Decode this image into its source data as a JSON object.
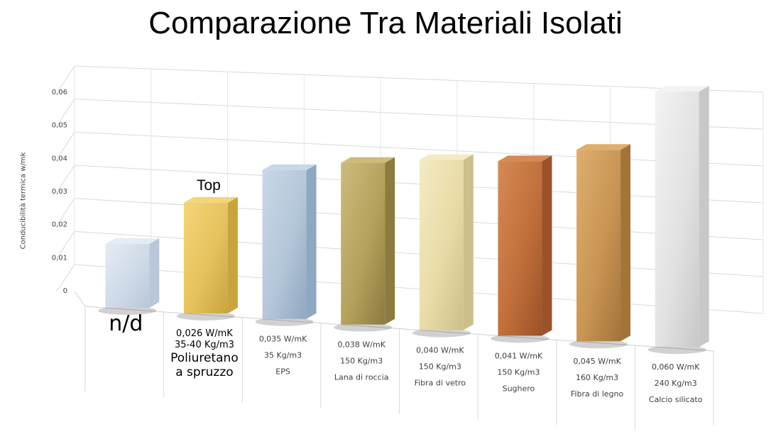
{
  "chart_data": {
    "type": "bar",
    "title": "Comparazione Tra Materiali Isolati",
    "ylabel": "Conducibilità termica w/mk",
    "ylim": [
      0,
      0.06
    ],
    "yticks": [
      "0",
      "0,01",
      "0,02",
      "0,03",
      "0,04",
      "0,05",
      "0,06"
    ],
    "grid": true,
    "annotation": "Top",
    "categories": [
      {
        "name": "",
        "lines": [
          "n/d"
        ],
        "value": 0.015,
        "texture": "ice-blue"
      },
      {
        "name": "Poliuretano a spruzzo",
        "lines": [
          "0,026 W/mK",
          "35-40 Kg/m3",
          "Poliuretano",
          "a spruzzo"
        ],
        "value": 0.026,
        "texture": "gold"
      },
      {
        "name": "EPS",
        "lines": [
          "0,035 W/mK",
          "35 Kg/m3",
          "EPS"
        ],
        "value": 0.035,
        "texture": "blue-grey"
      },
      {
        "name": "Lana di roccia",
        "lines": [
          "0,038 W/mK",
          "150 Kg/m3",
          "Lana di roccia"
        ],
        "value": 0.038,
        "texture": "olive"
      },
      {
        "name": "Fibra di vetro",
        "lines": [
          "0,040 W/mK",
          "150 Kg/m3",
          "Fibra di vetro"
        ],
        "value": 0.04,
        "texture": "cream"
      },
      {
        "name": "Sughero",
        "lines": [
          "0,041 W/mK",
          "150 Kg/m3",
          "Sughero"
        ],
        "value": 0.041,
        "texture": "cork"
      },
      {
        "name": "Fibra di legno",
        "lines": [
          "0,045 W/mK",
          "160 Kg/m3",
          "Fibra di legno"
        ],
        "value": 0.045,
        "texture": "wood"
      },
      {
        "name": "Calcio silicato",
        "lines": [
          "0,060 W/mK",
          "240 Kg/m3",
          "Calcio silicato"
        ],
        "value": 0.06,
        "texture": "white-stone"
      }
    ],
    "colors": {
      "ice-blue": [
        "#e4ecf5",
        "#b9c7d8",
        "#cfdae8"
      ],
      "gold": [
        "#f3d57a",
        "#c9a33e",
        "#e6c25c"
      ],
      "blue-grey": [
        "#c9d8e8",
        "#8fa7c0",
        "#b4c6d9"
      ],
      "olive": [
        "#cdbb7d",
        "#8c7a3f",
        "#b5a15c"
      ],
      "cream": [
        "#f4ebc4",
        "#cbbf8a",
        "#e8dba6"
      ],
      "cork": [
        "#d58a55",
        "#9a5228",
        "#c06f3b"
      ],
      "wood": [
        "#deae6e",
        "#a2743a",
        "#c99454"
      ],
      "white-stone": [
        "#f3f3f3",
        "#c8c8c8",
        "#e2e2e2"
      ]
    }
  }
}
